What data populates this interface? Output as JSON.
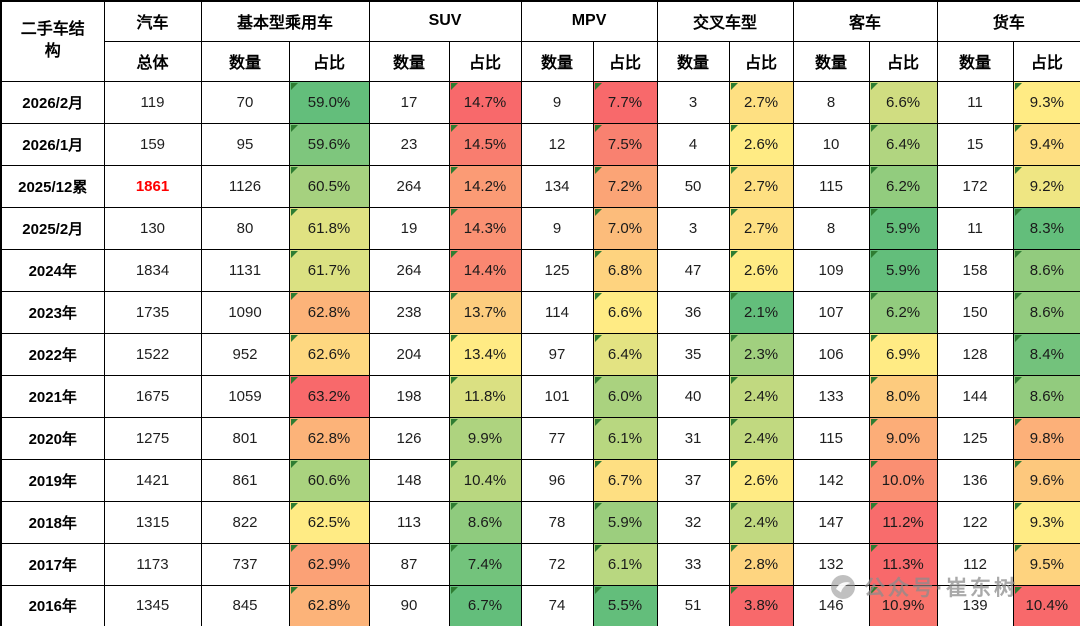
{
  "corner_header": "二手车结构",
  "watermark": {
    "text": "公众号·崔东树"
  },
  "colors": {
    "scale_min": "#63BE7B",
    "scale_mid": "#FFEB84",
    "scale_max": "#F8696B",
    "indicator_green": "#2E7D32",
    "highlight_red": "#FF0000"
  },
  "chart_data": {
    "type": "table",
    "title": "二手车结构",
    "groups": [
      {
        "label": "汽车",
        "subcols": [
          "总体"
        ]
      },
      {
        "label": "基本型乘用车",
        "subcols": [
          "数量",
          "占比"
        ]
      },
      {
        "label": "SUV",
        "subcols": [
          "数量",
          "占比"
        ]
      },
      {
        "label": "MPV",
        "subcols": [
          "数量",
          "占比"
        ]
      },
      {
        "label": "交叉车型",
        "subcols": [
          "数量",
          "占比"
        ]
      },
      {
        "label": "客车",
        "subcols": [
          "数量",
          "占比"
        ]
      },
      {
        "label": "货车",
        "subcols": [
          "数量",
          "占比"
        ]
      }
    ],
    "rows": [
      {
        "label": "2026/2月",
        "total": 119,
        "total_red": false,
        "cells": [
          [
            70,
            59.0
          ],
          [
            17,
            14.7
          ],
          [
            9,
            7.7
          ],
          [
            3,
            2.7
          ],
          [
            8,
            6.6
          ],
          [
            11,
            9.3
          ]
        ]
      },
      {
        "label": "2026/1月",
        "total": 159,
        "total_red": false,
        "cells": [
          [
            95,
            59.6
          ],
          [
            23,
            14.5
          ],
          [
            12,
            7.5
          ],
          [
            4,
            2.6
          ],
          [
            10,
            6.4
          ],
          [
            15,
            9.4
          ]
        ]
      },
      {
        "label": "2025/12累",
        "total": 1861,
        "total_red": true,
        "cells": [
          [
            1126,
            60.5
          ],
          [
            264,
            14.2
          ],
          [
            134,
            7.2
          ],
          [
            50,
            2.7
          ],
          [
            115,
            6.2
          ],
          [
            172,
            9.2
          ]
        ]
      },
      {
        "label": "2025/2月",
        "total": 130,
        "total_red": false,
        "cells": [
          [
            80,
            61.8
          ],
          [
            19,
            14.3
          ],
          [
            9,
            7.0
          ],
          [
            3,
            2.7
          ],
          [
            8,
            5.9
          ],
          [
            11,
            8.3
          ]
        ]
      },
      {
        "label": "2024年",
        "total": 1834,
        "total_red": false,
        "cells": [
          [
            1131,
            61.7
          ],
          [
            264,
            14.4
          ],
          [
            125,
            6.8
          ],
          [
            47,
            2.6
          ],
          [
            109,
            5.9
          ],
          [
            158,
            8.6
          ]
        ]
      },
      {
        "label": "2023年",
        "total": 1735,
        "total_red": false,
        "cells": [
          [
            1090,
            62.8
          ],
          [
            238,
            13.7
          ],
          [
            114,
            6.6
          ],
          [
            36,
            2.1
          ],
          [
            107,
            6.2
          ],
          [
            150,
            8.6
          ]
        ]
      },
      {
        "label": "2022年",
        "total": 1522,
        "total_red": false,
        "cells": [
          [
            952,
            62.6
          ],
          [
            204,
            13.4
          ],
          [
            97,
            6.4
          ],
          [
            35,
            2.3
          ],
          [
            106,
            6.9
          ],
          [
            128,
            8.4
          ]
        ]
      },
      {
        "label": "2021年",
        "total": 1675,
        "total_red": false,
        "cells": [
          [
            1059,
            63.2
          ],
          [
            198,
            11.8
          ],
          [
            101,
            6.0
          ],
          [
            40,
            2.4
          ],
          [
            133,
            8.0
          ],
          [
            144,
            8.6
          ]
        ]
      },
      {
        "label": "2020年",
        "total": 1275,
        "total_red": false,
        "cells": [
          [
            801,
            62.8
          ],
          [
            126,
            9.9
          ],
          [
            77,
            6.1
          ],
          [
            31,
            2.4
          ],
          [
            115,
            9.0
          ],
          [
            125,
            9.8
          ]
        ]
      },
      {
        "label": "2019年",
        "total": 1421,
        "total_red": false,
        "cells": [
          [
            861,
            60.6
          ],
          [
            148,
            10.4
          ],
          [
            96,
            6.7
          ],
          [
            37,
            2.6
          ],
          [
            142,
            10.0
          ],
          [
            136,
            9.6
          ]
        ]
      },
      {
        "label": "2018年",
        "total": 1315,
        "total_red": false,
        "cells": [
          [
            822,
            62.5
          ],
          [
            113,
            8.6
          ],
          [
            78,
            5.9
          ],
          [
            32,
            2.4
          ],
          [
            147,
            11.2
          ],
          [
            122,
            9.3
          ]
        ]
      },
      {
        "label": "2017年",
        "total": 1173,
        "total_red": false,
        "cells": [
          [
            737,
            62.9
          ],
          [
            87,
            7.4
          ],
          [
            72,
            6.1
          ],
          [
            33,
            2.8
          ],
          [
            132,
            11.3
          ],
          [
            112,
            9.5
          ]
        ]
      },
      {
        "label": "2016年",
        "total": 1345,
        "total_red": false,
        "cells": [
          [
            845,
            62.8
          ],
          [
            90,
            6.7
          ],
          [
            74,
            5.5
          ],
          [
            51,
            3.8
          ],
          [
            146,
            10.9
          ],
          [
            139,
            10.4
          ]
        ]
      }
    ]
  }
}
